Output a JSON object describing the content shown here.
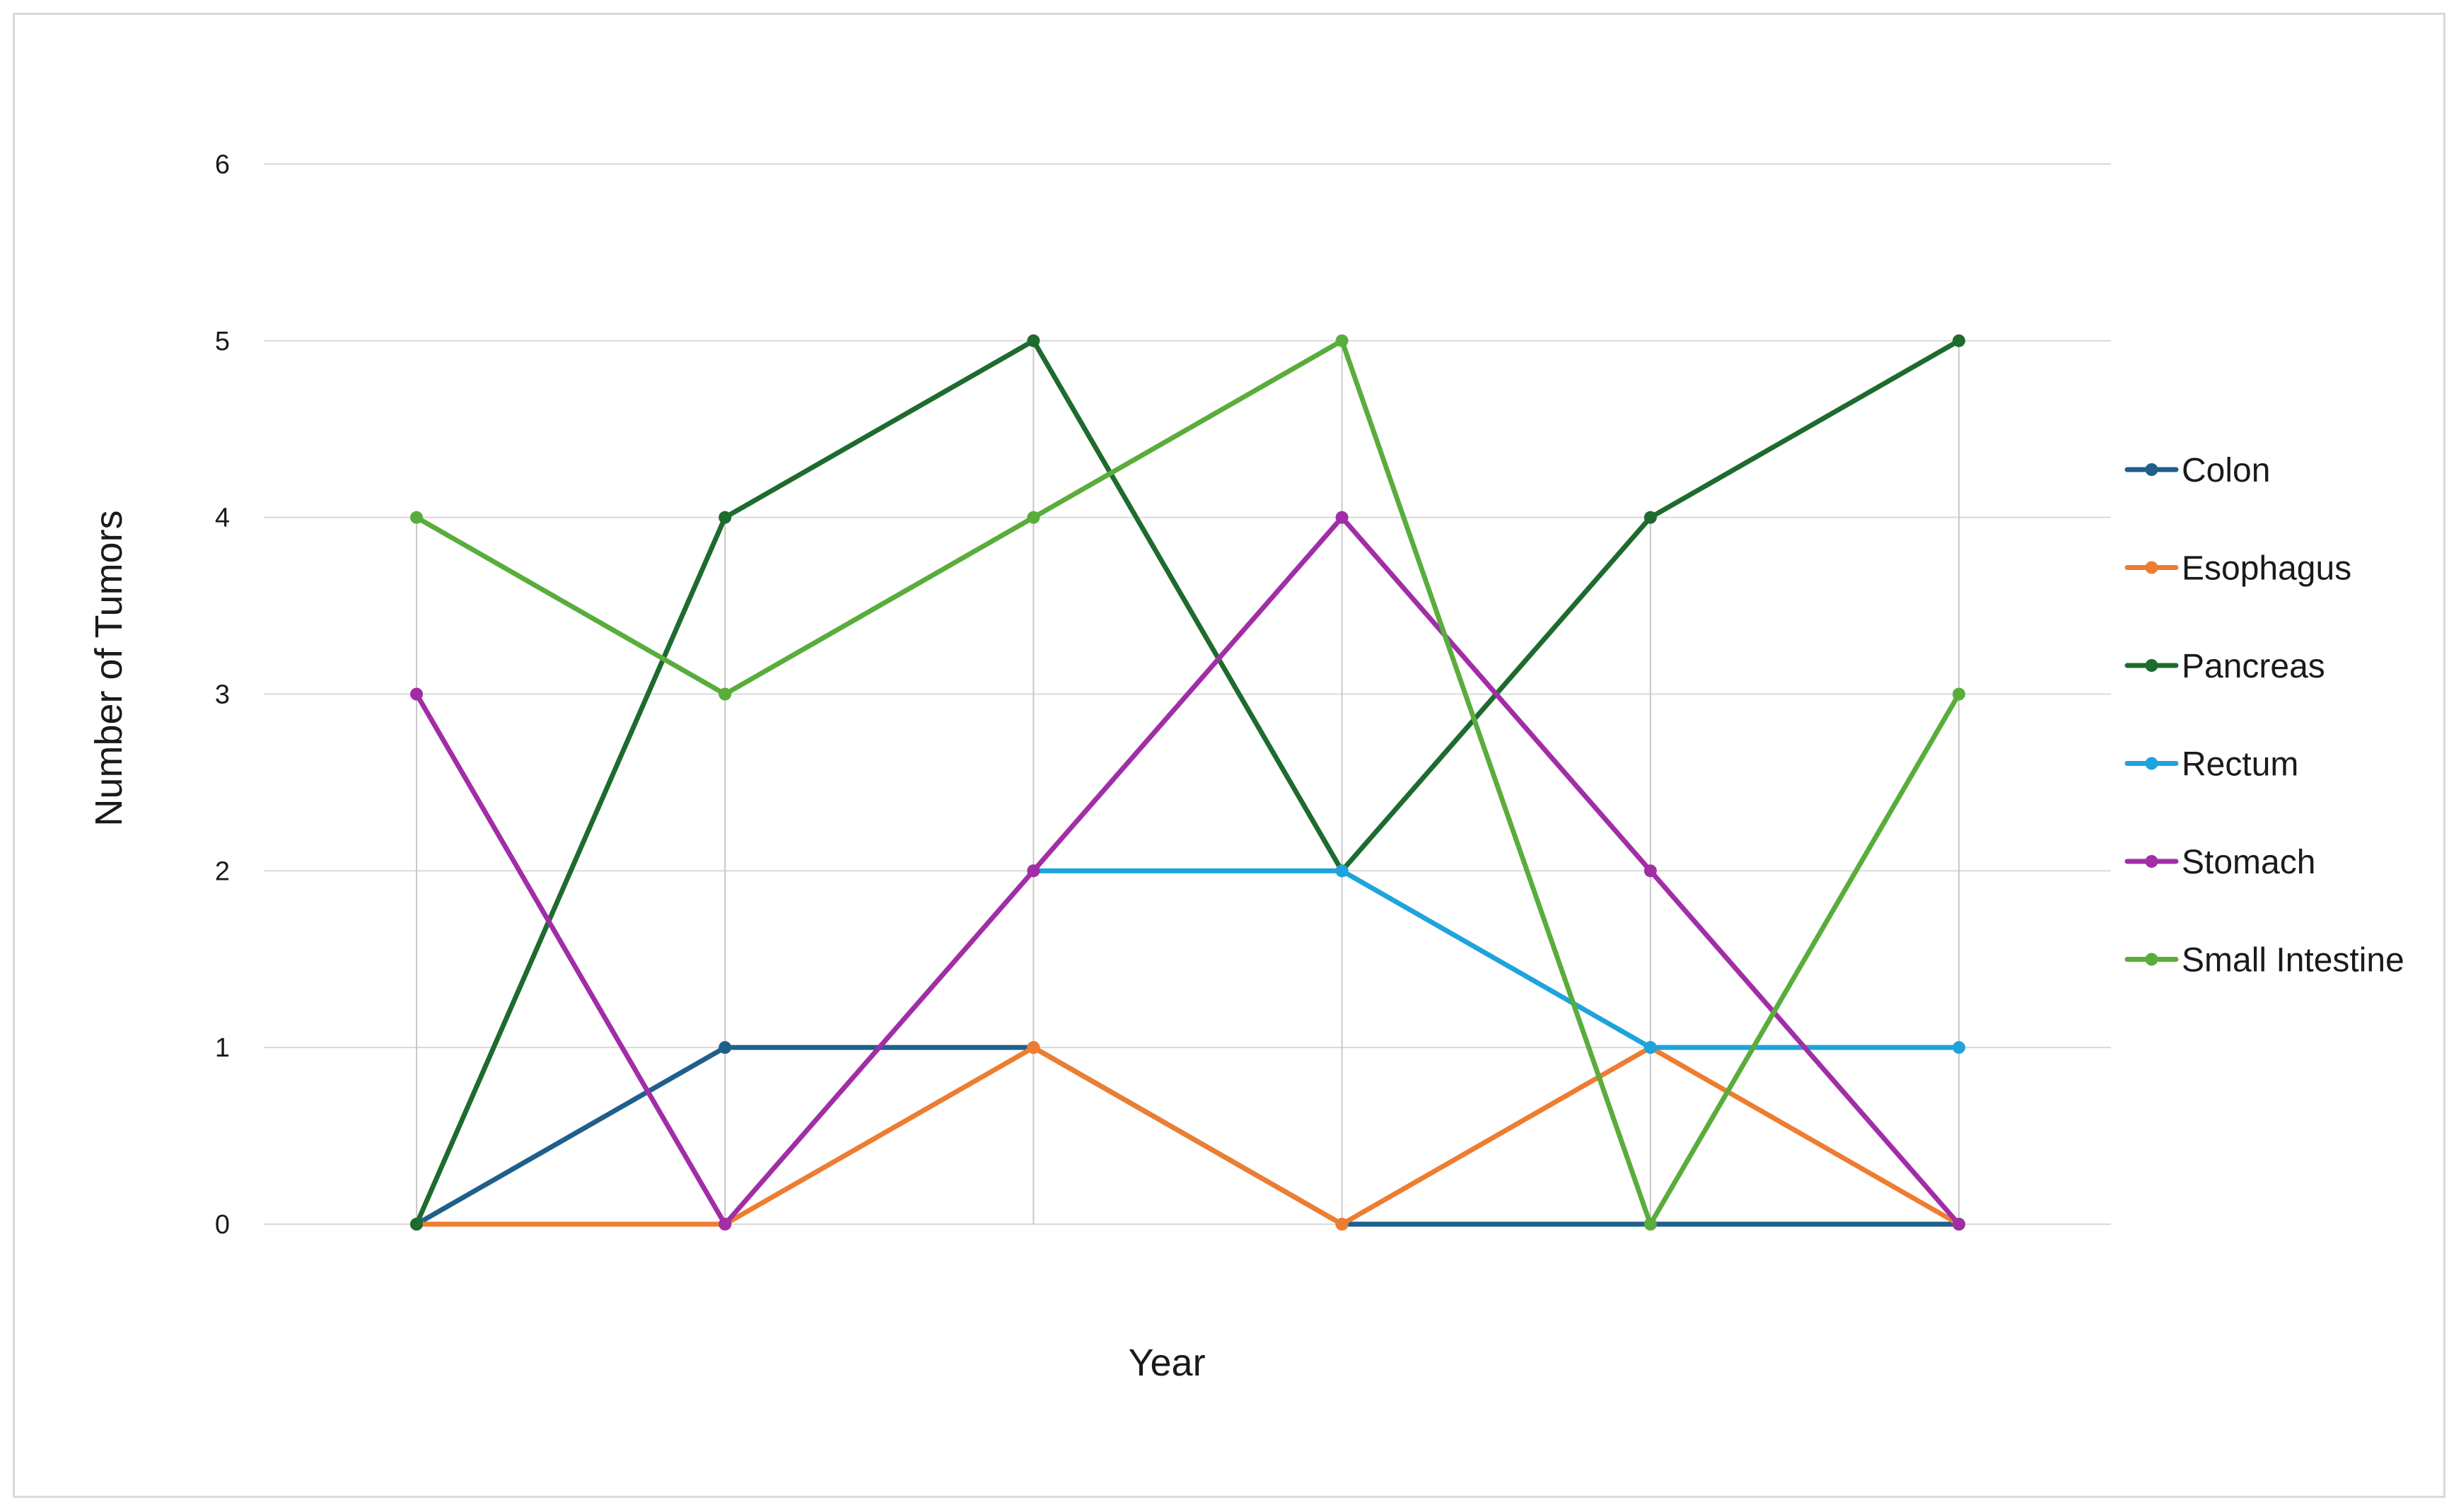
{
  "chart_data": {
    "type": "line",
    "title": "",
    "xlabel": "Year",
    "ylabel": "Number of Tumors",
    "categories": [
      "",
      "",
      "",
      "",
      "",
      ""
    ],
    "ylim": [
      0,
      6
    ],
    "yticks": [
      0,
      1,
      2,
      3,
      4,
      5,
      6
    ],
    "grid": "horizontal and vertical",
    "legend_position": "right",
    "series": [
      {
        "name": "Colon",
        "color": "#1f5f8b",
        "values": [
          0,
          1,
          1,
          0,
          0,
          0
        ]
      },
      {
        "name": "Esophagus",
        "color": "#ed7d31",
        "values": [
          0,
          0,
          1,
          0,
          1,
          0
        ]
      },
      {
        "name": "Pancreas",
        "color": "#1e6b2e",
        "values": [
          0,
          4,
          5,
          2,
          4,
          5
        ]
      },
      {
        "name": "Rectum",
        "color": "#1fa3dc",
        "values": [
          null,
          null,
          2,
          2,
          1,
          1
        ]
      },
      {
        "name": "Stomach",
        "color": "#a12ea6",
        "values": [
          3,
          0,
          2,
          4,
          2,
          0
        ]
      },
      {
        "name": "Small Intestine",
        "color": "#5aad3c",
        "values": [
          4,
          3,
          4,
          5,
          0,
          3
        ]
      }
    ]
  }
}
